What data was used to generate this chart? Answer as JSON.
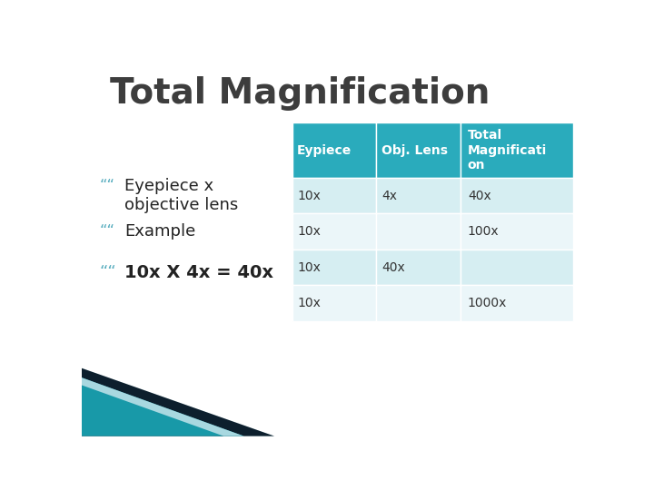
{
  "title": "Total Magnification",
  "title_color": "#3d3d3d",
  "title_fontsize": 28,
  "title_weight": "bold",
  "bullet_points": [
    "Eyepiece x\nobjective lens",
    "Example",
    "10x X 4x = 40x"
  ],
  "bullet_color": "#222222",
  "bullet_quote_color": "#5BAFC0",
  "table_header_bg": "#2AABBC",
  "table_header_text": "#ffffff",
  "table_row_bg_odd": "#D6EEF2",
  "table_row_bg_even": "#EBF6F9",
  "table_text_color": "#333333",
  "table_headers": [
    "Eypiece",
    "Obj. Lens",
    "Total\nMagnificati\non"
  ],
  "table_data": [
    [
      "10x",
      "4x",
      "40x"
    ],
    [
      "10x",
      "",
      "100x"
    ],
    [
      "10x",
      "40x",
      ""
    ],
    [
      "10x",
      "",
      "1000x"
    ]
  ],
  "bg_color": "#ffffff",
  "corner_teal_color": "#1899A8",
  "corner_dark_color": "#0d1f2d",
  "corner_light_color": "#A8D8E0"
}
